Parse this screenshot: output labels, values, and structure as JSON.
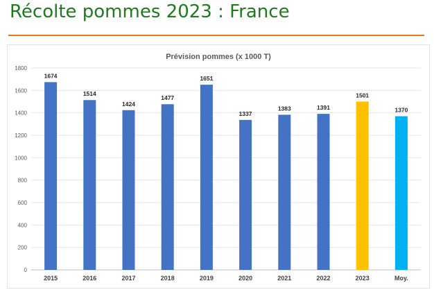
{
  "slide": {
    "title": "Récolte pommes 2023 : France",
    "title_color": "#1f7a1f",
    "rule_color": "#e07b24"
  },
  "chart_data": {
    "type": "bar",
    "title": "Prévision pommes (x 1000 T)",
    "xlabel": "",
    "ylabel": "",
    "categories": [
      "2015",
      "2016",
      "2017",
      "2018",
      "2019",
      "2020",
      "2021",
      "2022",
      "2023",
      "Moy."
    ],
    "values": [
      1674,
      1514,
      1424,
      1477,
      1651,
      1337,
      1383,
      1391,
      1501,
      1370
    ],
    "bar_colors": [
      "#4472c4",
      "#4472c4",
      "#4472c4",
      "#4472c4",
      "#4472c4",
      "#4472c4",
      "#4472c4",
      "#4472c4",
      "#ffc000",
      "#00b0f0"
    ],
    "ylim": [
      0,
      1800
    ],
    "yticks": [
      0,
      200,
      400,
      600,
      800,
      1000,
      1200,
      1400,
      1600,
      1800
    ],
    "grid": true,
    "data_labels": true
  }
}
